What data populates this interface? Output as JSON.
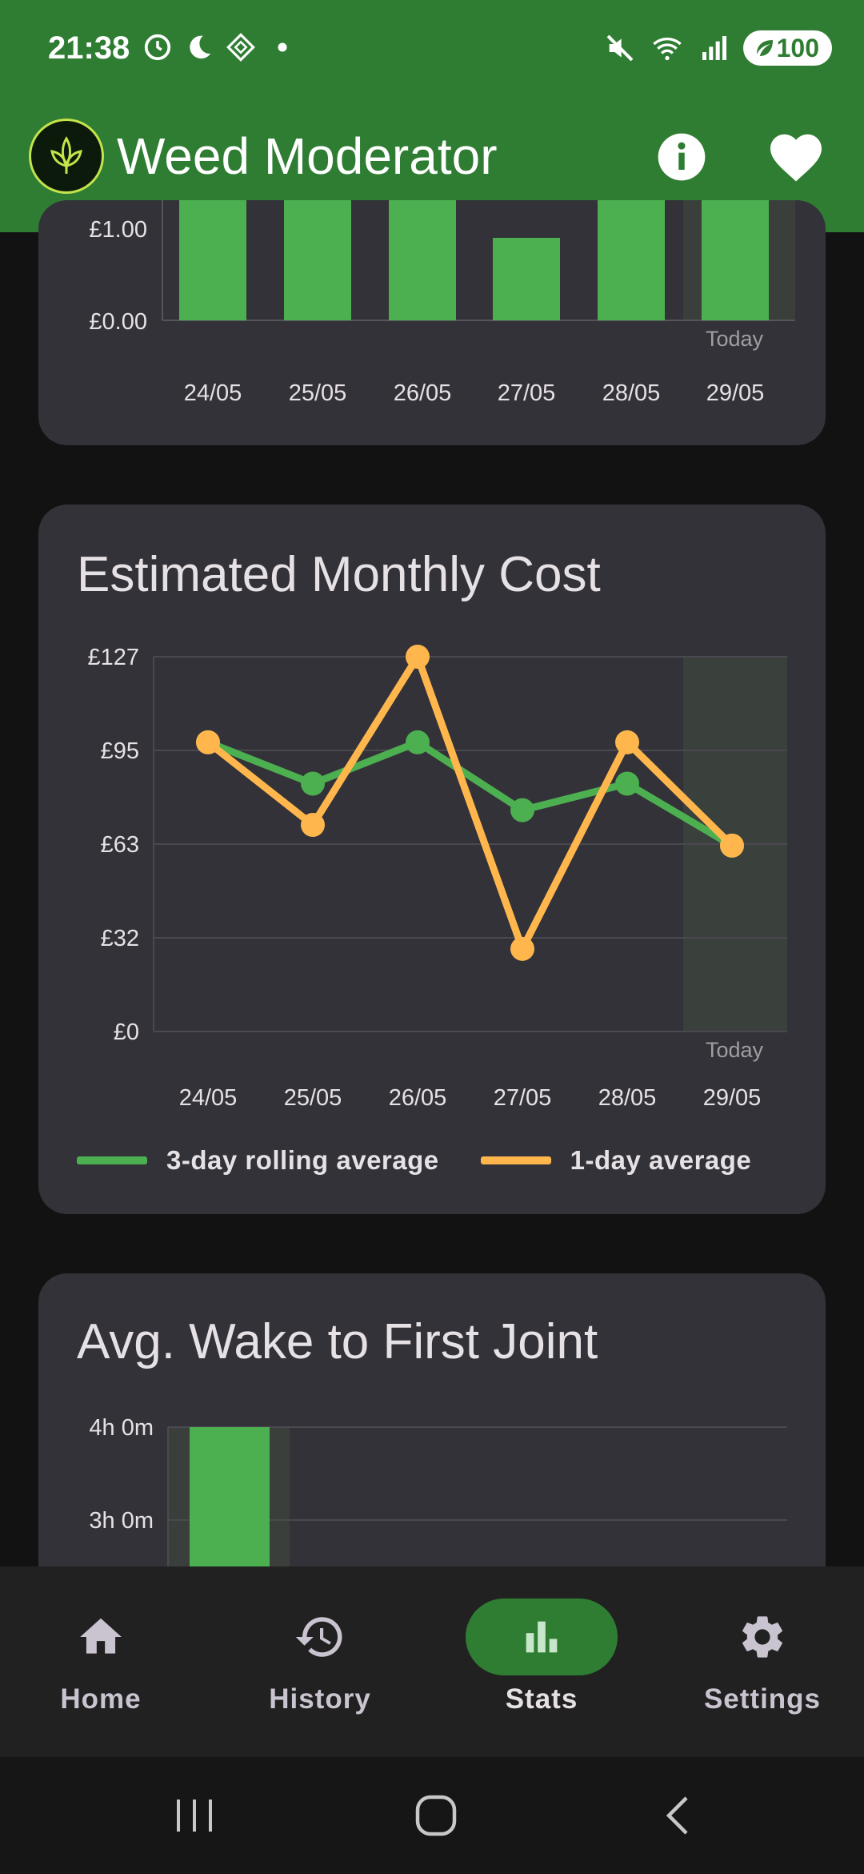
{
  "status_bar": {
    "time": "21:38",
    "battery": "100",
    "icons_left": [
      "alarm-icon",
      "moon-icon",
      "nfc-icon",
      "dot-icon"
    ],
    "icons_right": [
      "mute-icon",
      "wifi-icon",
      "signal-icon",
      "battery-icon"
    ]
  },
  "app_bar": {
    "title": "Weed Moderator",
    "actions": [
      "info-icon",
      "heart-icon"
    ]
  },
  "spend_chart": {
    "type": "bar",
    "y_tick_top_partial": "£1.00",
    "y_tick_zero": "£0.00",
    "categories": [
      "24/05",
      "25/05",
      "26/05",
      "27/05",
      "28/05",
      "29/05"
    ],
    "today_label": "Today",
    "bar_color": "#4caf50"
  },
  "monthly_cost": {
    "title": "Estimated Monthly Cost",
    "chart_data": {
      "type": "line",
      "categories": [
        "24/05",
        "25/05",
        "26/05",
        "27/05",
        "28/05",
        "29/05"
      ],
      "y_ticks": [
        "£0",
        "£32",
        "£63",
        "£95",
        "£127"
      ],
      "ylim": [
        0,
        127
      ],
      "today_label": "Today",
      "series": [
        {
          "name": "3-day rolling average",
          "color": "#4caf50",
          "values": [
            98,
            84,
            98,
            75,
            84,
            63
          ]
        },
        {
          "name": "1-day average",
          "color": "#ffb74d",
          "values": [
            98,
            70,
            127,
            28,
            98,
            63
          ]
        }
      ],
      "legend": "bottom"
    }
  },
  "wake_chart": {
    "title": "Avg. Wake to First Joint",
    "y_ticks": [
      "4h 0m",
      "3h 0m"
    ],
    "bar_color": "#4caf50"
  },
  "bottom_nav": {
    "items": [
      {
        "label": "Home",
        "icon": "home-icon"
      },
      {
        "label": "History",
        "icon": "history-icon"
      },
      {
        "label": "Stats",
        "icon": "stats-icon",
        "active": true
      },
      {
        "label": "Settings",
        "icon": "gear-icon"
      }
    ]
  }
}
